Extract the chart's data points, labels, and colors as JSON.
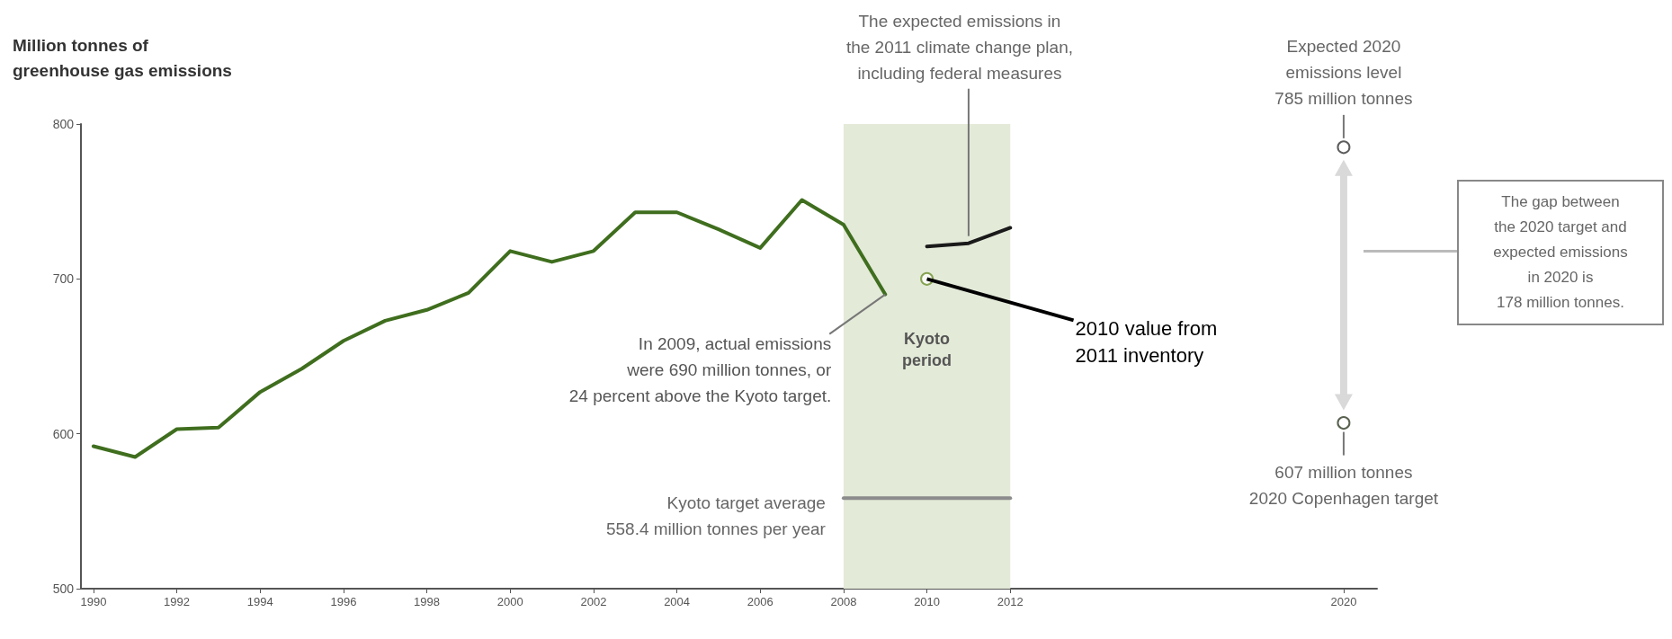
{
  "chart_data": {
    "type": "line",
    "ylabel": "Million tonnes of\ngreenhouse gas emissions",
    "xlim": [
      1989.7,
      2020.8
    ],
    "xticks": [
      1990,
      1992,
      1994,
      1996,
      1998,
      2000,
      2002,
      2004,
      2006,
      2008,
      2010,
      2012,
      2020
    ],
    "ylim": [
      500,
      800
    ],
    "yticks": [
      500,
      600,
      700,
      800
    ],
    "grid": false,
    "series": [
      {
        "color": "#3f6e1e",
        "x": [
          1990,
          1991,
          1992,
          1993,
          1994,
          1995,
          1996,
          1997,
          1998,
          1999,
          2000,
          2001,
          2002,
          2003,
          2004,
          2005,
          2006,
          2007,
          2008,
          2009
        ],
        "values": [
          592,
          585,
          603,
          604,
          627,
          642,
          660,
          673,
          680,
          691,
          718,
          711,
          718,
          743,
          743,
          732,
          720,
          751,
          735,
          690
        ],
        "marker": "none"
      },
      {
        "type": "scatter",
        "color": "#6b8e2a",
        "x": [
          2010
        ],
        "values": [
          700
        ],
        "marker": "circle"
      },
      {
        "color": "#1a1a1a",
        "x": [
          2010,
          2011,
          2012
        ],
        "values": [
          721,
          723,
          733
        ],
        "marker": "none"
      },
      {
        "color": "#8c8c8c",
        "x": [
          2008,
          2012
        ],
        "values": [
          558.4,
          558.4
        ],
        "marker": "none"
      },
      {
        "type": "scatter",
        "color": "#333333",
        "x": [
          2020
        ],
        "values": [
          785
        ],
        "marker": "circle"
      },
      {
        "type": "scatter",
        "color": "#2f3b24",
        "x": [
          2020
        ],
        "values": [
          607
        ],
        "marker": "circle"
      }
    ],
    "bands": [
      {
        "axis": "x",
        "from": 2008,
        "to": 2012,
        "label": "Kyoto period",
        "color": "#e3ead8"
      }
    ],
    "annotations": [
      {
        "text": "In 2009, actual emissions\nwere 690 million tonnes, or\n24 percent above the Kyoto target.",
        "x": 2009,
        "y": 690
      },
      {
        "text": "2010 value from\n2011 inventory",
        "x": 2010,
        "y": 700
      },
      {
        "text": "The expected emissions in\nthe 2011 climate change plan,\nincluding federal measures",
        "x": 2011,
        "y": 723
      },
      {
        "text": "Expected 2020\nemissions level\n785 million tonnes",
        "x": 2020,
        "y": 785
      },
      {
        "text": "607 million tonnes\n2020 Copenhagen target",
        "x": 2020,
        "y": 607
      },
      {
        "text": "Kyoto target average\n558.4 million tonnes per year",
        "x": 2008,
        "y": 558.4
      },
      "The gap between\nthe 2020 target and\nexpected emissions\nin 2020 is\n178 million tonnes."
    ]
  }
}
